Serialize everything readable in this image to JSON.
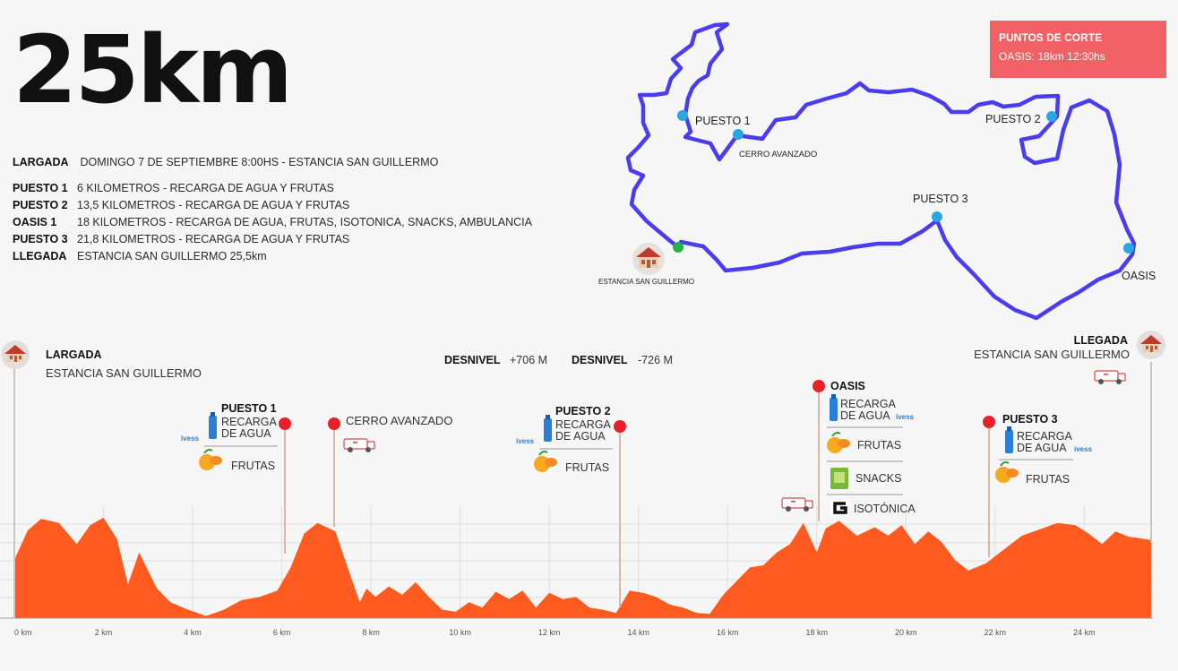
{
  "title": "25km",
  "info": {
    "largada": {
      "label": "LARGADA",
      "text": "DOMINGO 7 DE SEPTIEMBRE 8:00HS - ESTANCIA SAN GUILLERMO"
    },
    "rows": [
      {
        "label": "PUESTO 1",
        "text": "6 KILOMETROS - RECARGA DE AGUA Y FRUTAS"
      },
      {
        "label": "PUESTO 2",
        "text": "13,5 KILOMETROS - RECARGA DE AGUA Y FRUTAS"
      },
      {
        "label": "OASIS 1",
        "text": "18 KILOMETROS - RECARGA DE AGUA, FRUTAS, ISOTONICA, SNACKS, AMBULANCIA"
      },
      {
        "label": "PUESTO 3",
        "text": "21,8 KILOMETROS - RECARGA DE AGUA Y FRUTAS"
      },
      {
        "label": "LLEGADA",
        "text": "ESTANCIA SAN GUILLERMO 25,5km"
      }
    ]
  },
  "cutoff": {
    "title": "PUNTOS DE CORTE",
    "text": "OASIS: 18km 12:30hs"
  },
  "map": {
    "labels": {
      "puesto1": "PUESTO 1",
      "cerro": "CERRO AVANZADO",
      "puesto2": "PUESTO 2",
      "puesto3": "PUESTO 3",
      "oasis": "OASIS",
      "estancia": "ESTANCIA SAN GUILLERMO"
    },
    "route_color": "#4a3df0",
    "marker_color": "#2aa7e0",
    "start_color": "#27b34a"
  },
  "profile": {
    "largada": {
      "title": "LARGADA",
      "subtitle": "ESTANCIA SAN GUILLERMO"
    },
    "llegada": {
      "title": "LLEGADA",
      "subtitle": "ESTANCIA SAN GUILLERMO"
    },
    "desnivel": [
      {
        "label": "DESNIVEL",
        "value": "+706 M"
      },
      {
        "label": "DESNIVEL",
        "value": "-726 M"
      }
    ],
    "puesto1": {
      "title": "PUESTO 1",
      "items": [
        "RECARGA DE AGUA",
        "FRUTAS"
      ]
    },
    "cerro": {
      "title": "CERRO AVANZADO"
    },
    "puesto2": {
      "title": "PUESTO 2",
      "items": [
        "RECARGA DE AGUA",
        "FRUTAS"
      ]
    },
    "oasis": {
      "title": "OASIS",
      "items": [
        "RECARGA DE AGUA",
        "FRUTAS",
        "SNACKS",
        "ISOTÓNICA"
      ]
    },
    "puesto3": {
      "title": "PUESTO 3",
      "items": [
        "RECARGA DE AGUA",
        "FRUTAS"
      ]
    },
    "brand": "ivess",
    "colors": {
      "fill": "#ff5a1f",
      "marker": "#e8202a",
      "water": "#2b7fd6",
      "fruit": "#f6a821"
    }
  },
  "chart_data": {
    "type": "area",
    "xlabel": "",
    "ylabel": "",
    "xlim": [
      0,
      25.5
    ],
    "x_ticks": [
      "0 km",
      "2 km",
      "4 km",
      "6 km",
      "8 km",
      "10 km",
      "12 km",
      "14 km",
      "16 km",
      "18 km",
      "20 km",
      "22 km",
      "24 km"
    ],
    "x_tick_values": [
      0,
      2,
      4,
      6,
      8,
      10,
      12,
      14,
      16,
      18,
      20,
      22,
      24
    ],
    "markers_km": {
      "puesto1": 6,
      "cerro": 7.15,
      "puesto2": 13.5,
      "oasis": 18,
      "puesto3": 21.8
    },
    "series": [
      {
        "x": [
          0,
          0.3,
          0.6,
          1.0,
          1.4,
          1.7,
          2.0,
          2.3,
          2.55,
          2.8,
          3.2,
          3.5,
          3.9,
          4.3,
          4.7,
          5.1,
          5.5,
          5.9,
          6.2,
          6.5,
          6.8,
          7.2,
          7.5,
          7.75,
          7.9,
          8.1,
          8.4,
          8.7,
          9.0,
          9.3,
          9.6,
          9.9,
          10.2,
          10.5,
          10.8,
          11.1,
          11.4,
          11.7,
          12.0,
          12.3,
          12.6,
          12.9,
          13.2,
          13.5,
          13.8,
          14.1,
          14.4,
          14.7,
          15.0,
          15.3,
          15.6,
          15.9,
          16.2,
          16.5,
          16.8,
          17.1,
          17.4,
          17.7,
          18.0,
          18.2,
          18.5,
          18.9,
          19.3,
          19.6,
          19.9,
          20.2,
          20.5,
          20.8,
          21.1,
          21.4,
          21.8,
          22.2,
          22.6,
          23.0,
          23.4,
          23.8,
          24.1,
          24.4,
          24.7,
          25.0,
          25.5
        ],
        "y": [
          0.55,
          0.83,
          0.94,
          0.9,
          0.7,
          0.88,
          0.95,
          0.75,
          0.32,
          0.62,
          0.28,
          0.15,
          0.08,
          0.02,
          0.08,
          0.17,
          0.2,
          0.26,
          0.48,
          0.8,
          0.9,
          0.82,
          0.45,
          0.15,
          0.28,
          0.2,
          0.3,
          0.22,
          0.34,
          0.2,
          0.08,
          0.06,
          0.15,
          0.1,
          0.25,
          0.18,
          0.26,
          0.1,
          0.24,
          0.18,
          0.2,
          0.1,
          0.08,
          0.05,
          0.26,
          0.24,
          0.2,
          0.13,
          0.1,
          0.05,
          0.04,
          0.22,
          0.35,
          0.48,
          0.5,
          0.62,
          0.7,
          0.9,
          0.62,
          0.85,
          0.92,
          0.78,
          0.86,
          0.78,
          0.88,
          0.7,
          0.82,
          0.72,
          0.55,
          0.45,
          0.52,
          0.65,
          0.78,
          0.84,
          0.9,
          0.88,
          0.8,
          0.7,
          0.82,
          0.77,
          0.74
        ]
      }
    ]
  }
}
